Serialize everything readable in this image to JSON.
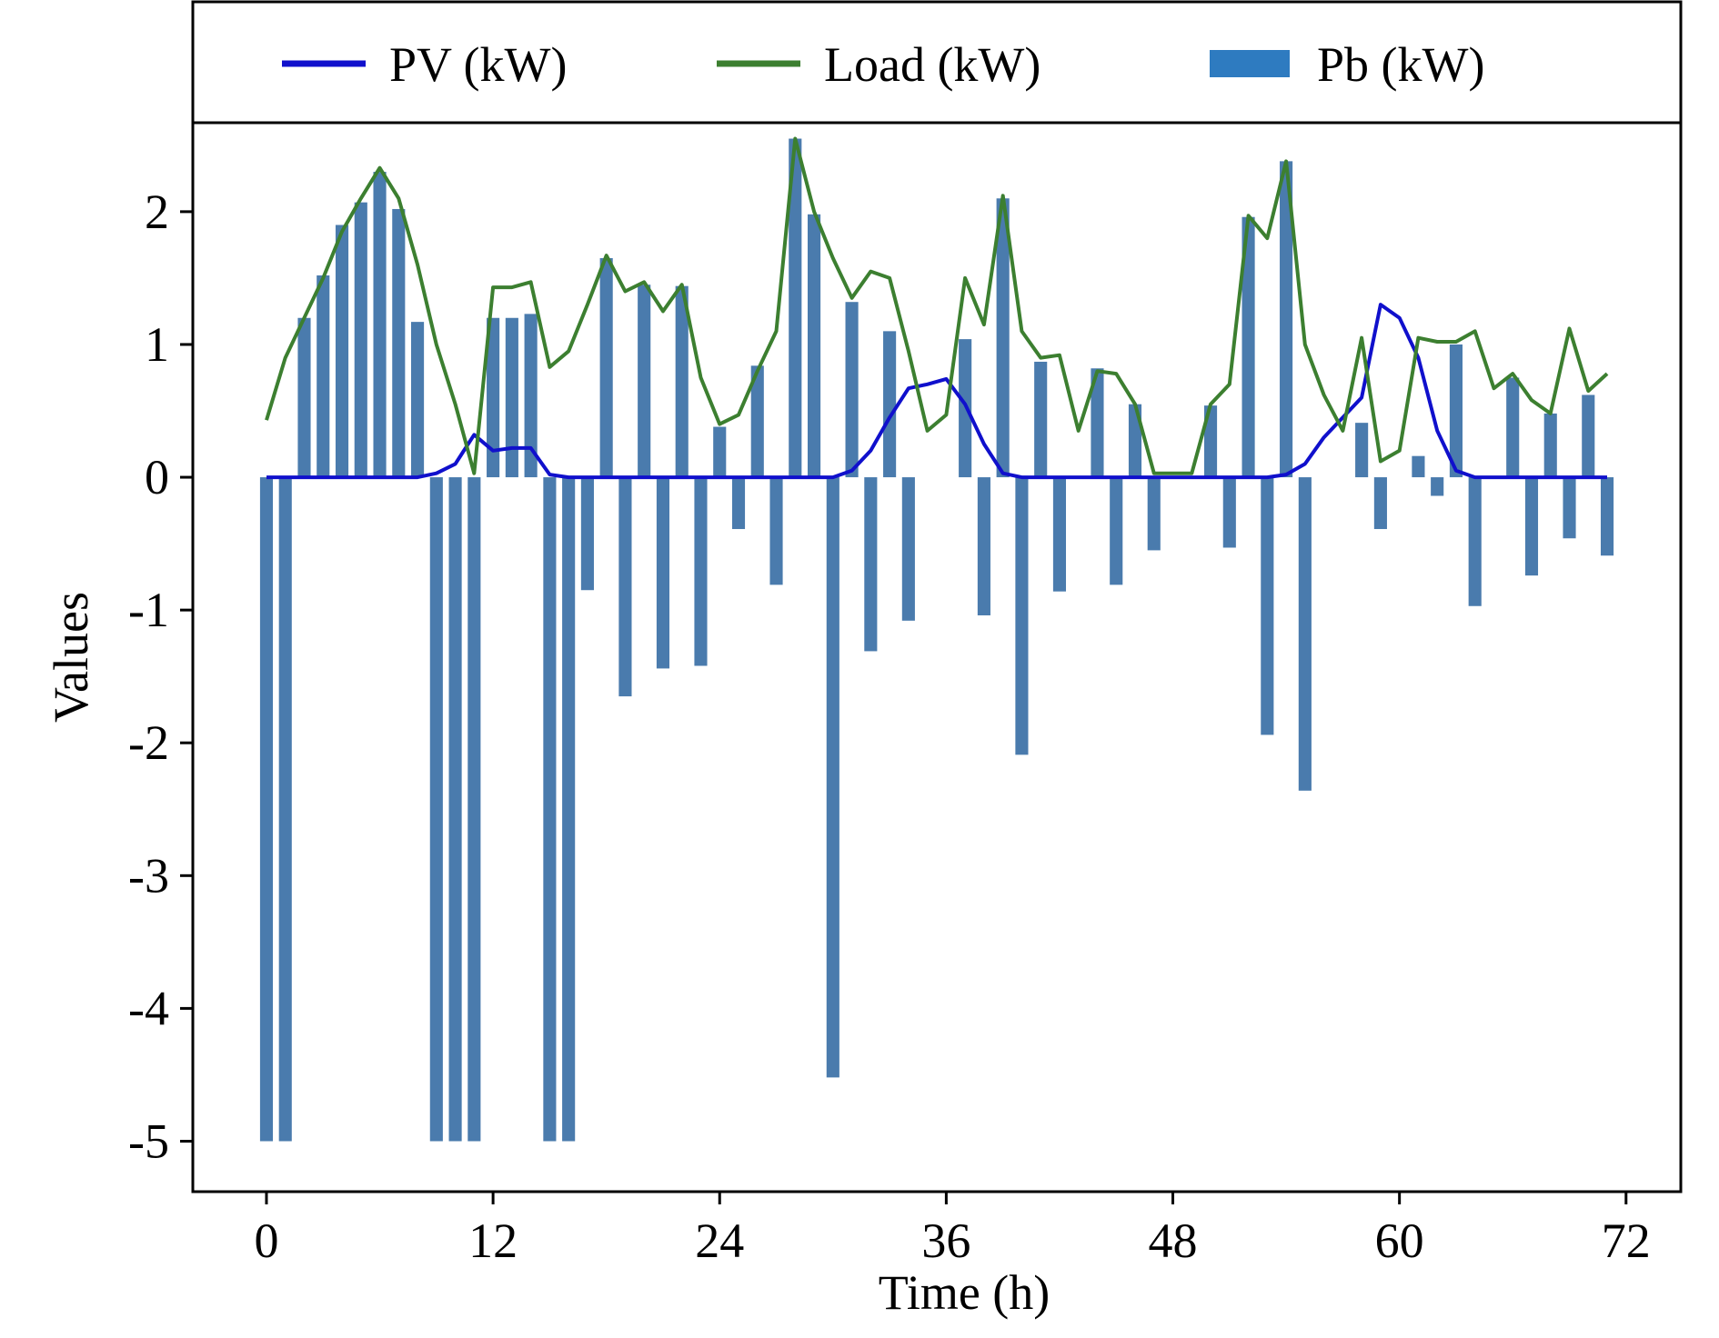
{
  "chart_data": {
    "type": "combo",
    "xlabel": "Time (h)",
    "ylabel": "Values",
    "x": [
      0,
      1,
      2,
      3,
      4,
      5,
      6,
      7,
      8,
      9,
      10,
      11,
      12,
      13,
      14,
      15,
      16,
      17,
      18,
      19,
      20,
      21,
      22,
      23,
      24,
      25,
      26,
      27,
      28,
      29,
      30,
      31,
      32,
      33,
      34,
      35,
      36,
      37,
      38,
      39,
      40,
      41,
      42,
      43,
      44,
      45,
      46,
      47,
      48,
      49,
      50,
      51,
      52,
      53,
      54,
      55,
      56,
      57,
      58,
      59,
      60,
      61,
      62,
      63,
      64,
      65,
      66,
      67,
      68,
      69,
      70,
      71
    ],
    "series": [
      {
        "name": "PV (kW)",
        "type": "line",
        "color": "#1010cc",
        "values": [
          0,
          0,
          0,
          0,
          0,
          0,
          0,
          0,
          0,
          0.03,
          0.1,
          0.32,
          0.2,
          0.22,
          0.22,
          0.02,
          0,
          0,
          0,
          0,
          0,
          0,
          0,
          0,
          0,
          0,
          0,
          0,
          0,
          0,
          0,
          0.05,
          0.2,
          0.45,
          0.67,
          0.7,
          0.74,
          0.55,
          0.25,
          0.03,
          0,
          0,
          0,
          0,
          0,
          0,
          0,
          0,
          0,
          0,
          0,
          0,
          0,
          0,
          0.02,
          0.1,
          0.3,
          0.45,
          0.6,
          1.3,
          1.2,
          0.9,
          0.35,
          0.05,
          0,
          0,
          0,
          0,
          0,
          0,
          0,
          0
        ]
      },
      {
        "name": "Load (kW)",
        "type": "line",
        "color": "#3c7f30",
        "values": [
          0.43,
          0.9,
          1.2,
          1.5,
          1.85,
          2.1,
          2.33,
          2.1,
          1.6,
          1.0,
          0.55,
          0.03,
          1.43,
          1.43,
          1.47,
          0.83,
          0.95,
          1.3,
          1.67,
          1.4,
          1.47,
          1.25,
          1.45,
          0.75,
          0.4,
          0.47,
          0.8,
          1.1,
          2.55,
          2.0,
          1.65,
          1.35,
          1.55,
          1.5,
          0.95,
          0.35,
          0.47,
          1.5,
          1.15,
          2.12,
          1.1,
          0.9,
          0.92,
          0.35,
          0.8,
          0.78,
          0.55,
          0.03,
          0.03,
          0.03,
          0.55,
          0.7,
          1.97,
          1.8,
          2.38,
          1.0,
          0.62,
          0.35,
          1.05,
          0.12,
          0.2,
          1.05,
          1.02,
          1.02,
          1.1,
          0.67,
          0.78,
          0.58,
          0.48,
          1.12,
          0.65,
          0.78
        ]
      },
      {
        "name": "Pb (kW)",
        "type": "bar",
        "color": "#4a7bad",
        "legend_color": "#2e7bc0",
        "values": [
          -5,
          -5,
          1.2,
          1.52,
          1.9,
          2.07,
          2.3,
          2.02,
          1.17,
          -5,
          -5,
          -5,
          1.2,
          1.2,
          1.23,
          -5,
          -5,
          -0.85,
          1.65,
          -1.65,
          1.45,
          -1.44,
          1.44,
          -1.42,
          0.38,
          -0.39,
          0.84,
          -0.81,
          2.55,
          1.98,
          -4.52,
          1.32,
          -1.31,
          1.1,
          -1.08,
          0,
          0,
          1.04,
          -1.04,
          2.1,
          -2.09,
          0.87,
          -0.86,
          0,
          0.82,
          -0.81,
          0.55,
          -0.55,
          0,
          0,
          0.54,
          -0.53,
          1.96,
          -1.94,
          2.38,
          -2.36,
          0,
          0,
          0.41,
          -0.39,
          0,
          0.16,
          -0.14,
          1.0,
          -0.97,
          0,
          0.75,
          -0.74,
          0.48,
          -0.46,
          0.62,
          -0.59
        ]
      }
    ],
    "xlim": [
      -3.9,
      74.9
    ],
    "ylim": [
      -5.38,
      2.67
    ],
    "xticks": [
      0,
      12,
      24,
      36,
      48,
      60,
      72
    ],
    "yticks": [
      -5,
      -4,
      -3,
      -2,
      -1,
      0,
      1,
      2
    ],
    "legend": "top"
  }
}
